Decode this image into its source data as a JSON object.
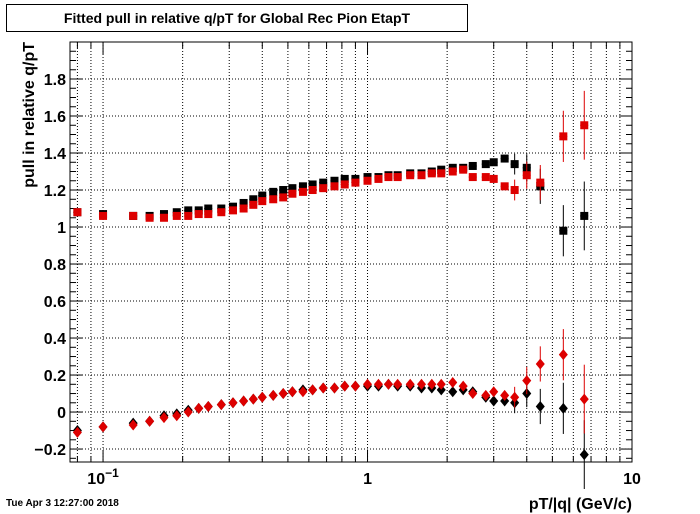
{
  "chart_data": {
    "type": "scatter",
    "title": "Fitted pull in relative q/pT for Global Rec Pion EtapT",
    "xlabel": "pT/|q| (GeV/c)",
    "ylabel": "pull in relative q/pT",
    "xscale": "log",
    "xlim": [
      0.075,
      10
    ],
    "ylim": [
      -0.27,
      2.0
    ],
    "grid": true,
    "x_tick_labels": [
      {
        "value": 0.1,
        "base": "10",
        "exp": "−1"
      },
      {
        "value": 1,
        "base": "1",
        "exp": ""
      },
      {
        "value": 10,
        "base": "10",
        "exp": ""
      }
    ],
    "y_ticks": [
      -0.2,
      0,
      0.2,
      0.4,
      0.6,
      0.8,
      1,
      1.2,
      1.4,
      1.6,
      1.8
    ],
    "y_tick_labels": [
      "−0.2",
      "0",
      "0.2",
      "0.4",
      "0.6",
      "0.8",
      "1",
      "1.2",
      "1.4",
      "1.6",
      "1.8"
    ],
    "series": [
      {
        "marker": "square",
        "color": "#000000",
        "points": [
          [
            0.08,
            1.08
          ],
          [
            0.1,
            1.07
          ],
          [
            0.13,
            1.06
          ],
          [
            0.15,
            1.06
          ],
          [
            0.17,
            1.07
          ],
          [
            0.19,
            1.08
          ],
          [
            0.21,
            1.09
          ],
          [
            0.23,
            1.09
          ],
          [
            0.25,
            1.1
          ],
          [
            0.28,
            1.1
          ],
          [
            0.31,
            1.11
          ],
          [
            0.34,
            1.13
          ],
          [
            0.37,
            1.15
          ],
          [
            0.4,
            1.17
          ],
          [
            0.44,
            1.19
          ],
          [
            0.48,
            1.2
          ],
          [
            0.52,
            1.21
          ],
          [
            0.57,
            1.22
          ],
          [
            0.62,
            1.23
          ],
          [
            0.68,
            1.24
          ],
          [
            0.75,
            1.25
          ],
          [
            0.82,
            1.26
          ],
          [
            0.9,
            1.26
          ],
          [
            1.0,
            1.27
          ],
          [
            1.1,
            1.27
          ],
          [
            1.2,
            1.28
          ],
          [
            1.3,
            1.28
          ],
          [
            1.45,
            1.29
          ],
          [
            1.6,
            1.29
          ],
          [
            1.75,
            1.3
          ],
          [
            1.9,
            1.31
          ],
          [
            2.1,
            1.32
          ],
          [
            2.3,
            1.32
          ],
          [
            2.5,
            1.33
          ],
          [
            2.8,
            1.34
          ],
          [
            3.0,
            1.35
          ],
          [
            3.3,
            1.37
          ],
          [
            3.6,
            1.34
          ],
          [
            4.0,
            1.32
          ],
          [
            4.5,
            1.22
          ],
          [
            5.5,
            0.98
          ],
          [
            6.6,
            1.06
          ]
        ]
      },
      {
        "marker": "square",
        "color": "#dd0000",
        "points": [
          [
            0.08,
            1.08
          ],
          [
            0.1,
            1.06
          ],
          [
            0.13,
            1.06
          ],
          [
            0.15,
            1.05
          ],
          [
            0.17,
            1.05
          ],
          [
            0.19,
            1.06
          ],
          [
            0.21,
            1.06
          ],
          [
            0.23,
            1.07
          ],
          [
            0.25,
            1.07
          ],
          [
            0.28,
            1.08
          ],
          [
            0.31,
            1.09
          ],
          [
            0.34,
            1.1
          ],
          [
            0.37,
            1.12
          ],
          [
            0.4,
            1.14
          ],
          [
            0.44,
            1.15
          ],
          [
            0.48,
            1.16
          ],
          [
            0.52,
            1.18
          ],
          [
            0.57,
            1.19
          ],
          [
            0.62,
            1.2
          ],
          [
            0.68,
            1.21
          ],
          [
            0.75,
            1.22
          ],
          [
            0.82,
            1.23
          ],
          [
            0.9,
            1.24
          ],
          [
            1.0,
            1.25
          ],
          [
            1.1,
            1.26
          ],
          [
            1.2,
            1.27
          ],
          [
            1.3,
            1.27
          ],
          [
            1.45,
            1.28
          ],
          [
            1.6,
            1.28
          ],
          [
            1.75,
            1.29
          ],
          [
            1.9,
            1.29
          ],
          [
            2.1,
            1.3
          ],
          [
            2.3,
            1.31
          ],
          [
            2.5,
            1.27
          ],
          [
            2.8,
            1.27
          ],
          [
            3.0,
            1.26
          ],
          [
            3.3,
            1.22
          ],
          [
            3.6,
            1.2
          ],
          [
            4.0,
            1.28
          ],
          [
            4.5,
            1.24
          ],
          [
            5.5,
            1.49
          ],
          [
            6.6,
            1.55
          ]
        ]
      },
      {
        "marker": "diamond",
        "color": "#000000",
        "points": [
          [
            0.08,
            -0.1
          ],
          [
            0.1,
            -0.08
          ],
          [
            0.13,
            -0.06
          ],
          [
            0.15,
            -0.05
          ],
          [
            0.17,
            -0.02
          ],
          [
            0.19,
            -0.01
          ],
          [
            0.21,
            0.01
          ],
          [
            0.23,
            0.02
          ],
          [
            0.25,
            0.03
          ],
          [
            0.28,
            0.04
          ],
          [
            0.31,
            0.05
          ],
          [
            0.34,
            0.06
          ],
          [
            0.37,
            0.07
          ],
          [
            0.4,
            0.08
          ],
          [
            0.44,
            0.09
          ],
          [
            0.48,
            0.1
          ],
          [
            0.52,
            0.11
          ],
          [
            0.57,
            0.12
          ],
          [
            0.62,
            0.12
          ],
          [
            0.68,
            0.13
          ],
          [
            0.75,
            0.13
          ],
          [
            0.82,
            0.14
          ],
          [
            0.9,
            0.14
          ],
          [
            1.0,
            0.14
          ],
          [
            1.1,
            0.14
          ],
          [
            1.2,
            0.15
          ],
          [
            1.3,
            0.14
          ],
          [
            1.45,
            0.14
          ],
          [
            1.6,
            0.13
          ],
          [
            1.75,
            0.13
          ],
          [
            1.9,
            0.12
          ],
          [
            2.1,
            0.11
          ],
          [
            2.3,
            0.12
          ],
          [
            2.5,
            0.11
          ],
          [
            2.8,
            0.08
          ],
          [
            3.0,
            0.06
          ],
          [
            3.3,
            0.06
          ],
          [
            3.6,
            0.05
          ],
          [
            4.0,
            0.1
          ],
          [
            4.5,
            0.03
          ],
          [
            5.5,
            0.02
          ],
          [
            6.6,
            -0.23
          ]
        ]
      },
      {
        "marker": "diamond",
        "color": "#dd0000",
        "points": [
          [
            0.08,
            -0.11
          ],
          [
            0.1,
            -0.08
          ],
          [
            0.13,
            -0.07
          ],
          [
            0.15,
            -0.05
          ],
          [
            0.17,
            -0.03
          ],
          [
            0.19,
            -0.02
          ],
          [
            0.21,
            0.0
          ],
          [
            0.23,
            0.02
          ],
          [
            0.25,
            0.03
          ],
          [
            0.28,
            0.04
          ],
          [
            0.31,
            0.05
          ],
          [
            0.34,
            0.06
          ],
          [
            0.37,
            0.07
          ],
          [
            0.4,
            0.08
          ],
          [
            0.44,
            0.09
          ],
          [
            0.48,
            0.1
          ],
          [
            0.52,
            0.11
          ],
          [
            0.57,
            0.11
          ],
          [
            0.62,
            0.12
          ],
          [
            0.68,
            0.13
          ],
          [
            0.75,
            0.13
          ],
          [
            0.82,
            0.14
          ],
          [
            0.9,
            0.14
          ],
          [
            1.0,
            0.15
          ],
          [
            1.1,
            0.15
          ],
          [
            1.2,
            0.15
          ],
          [
            1.3,
            0.15
          ],
          [
            1.45,
            0.15
          ],
          [
            1.6,
            0.15
          ],
          [
            1.75,
            0.15
          ],
          [
            1.9,
            0.15
          ],
          [
            2.1,
            0.16
          ],
          [
            2.3,
            0.14
          ],
          [
            2.5,
            0.1
          ],
          [
            2.8,
            0.09
          ],
          [
            3.0,
            0.11
          ],
          [
            3.3,
            0.09
          ],
          [
            3.6,
            0.08
          ],
          [
            4.0,
            0.17
          ],
          [
            4.5,
            0.26
          ],
          [
            5.5,
            0.31
          ],
          [
            6.6,
            0.07
          ]
        ]
      }
    ]
  },
  "footer": {
    "timestamp": "Tue Apr  3 12:27:00 2018"
  }
}
